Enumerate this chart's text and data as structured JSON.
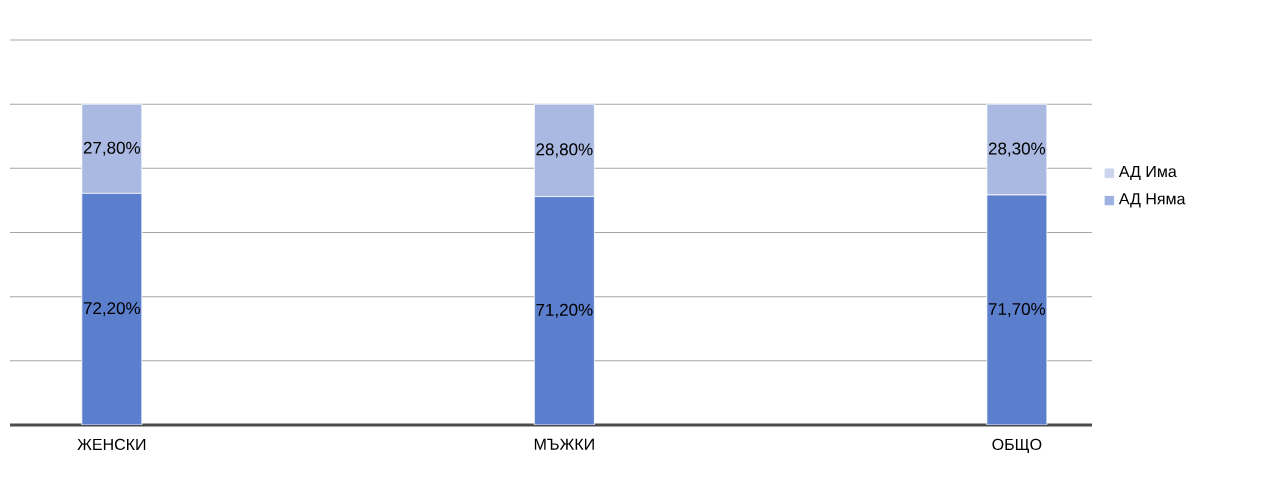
{
  "chart_data": {
    "type": "bar",
    "stacked": true,
    "categories": [
      "ЖЕНСКИ",
      "МЪЖКИ",
      "ОБЩО"
    ],
    "series": [
      {
        "name": "АД Няма",
        "color": "#5b7fcc",
        "values": [
          72.2,
          71.2,
          71.7
        ],
        "value_labels": [
          "72,20%",
          "71,20%",
          "71,70%"
        ]
      },
      {
        "name": "АД Има",
        "color": "#aab9e2",
        "values": [
          27.8,
          28.8,
          28.3
        ],
        "value_labels": [
          "27,80%",
          "28,80%",
          "28,30%"
        ]
      }
    ],
    "ylim": [
      0,
      120
    ],
    "yticks": [
      {
        "value": 0,
        "label": null
      },
      {
        "value": 20,
        "label": null
      },
      {
        "value": 40,
        "label": null
      },
      {
        "value": 60,
        "label": null
      },
      {
        "value": 80,
        "label": null
      },
      {
        "value": 100,
        "label": null
      },
      {
        "value": 120,
        "label": null
      }
    ],
    "grid": "y",
    "legend": "right"
  }
}
